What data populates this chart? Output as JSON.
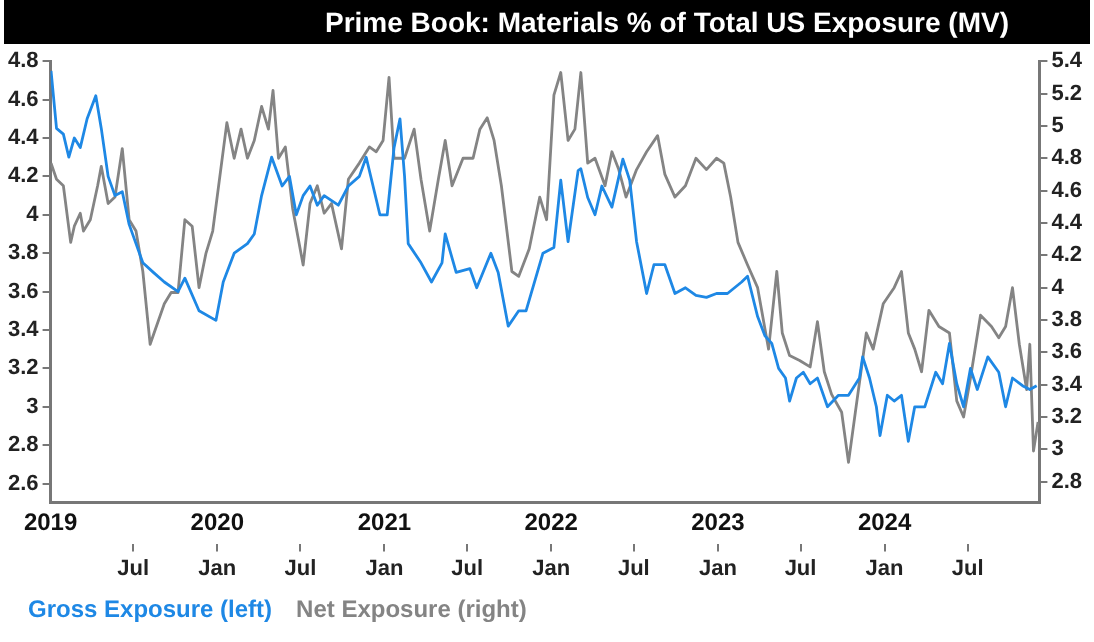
{
  "chart_data": {
    "type": "line",
    "title": "Prime Book: Materials % of Total US Exposure (MV)",
    "xlim": [
      "2019-01-01",
      "2024-12-05"
    ],
    "xticks": [
      {
        "value": "2019-07-01",
        "label": "Jul"
      },
      {
        "value": "2020-01-01",
        "label": "Jan"
      },
      {
        "value": "2020-07-01",
        "label": "Jul"
      },
      {
        "value": "2021-01-01",
        "label": "Jan"
      },
      {
        "value": "2021-07-01",
        "label": "Jul"
      },
      {
        "value": "2022-01-01",
        "label": "Jan"
      },
      {
        "value": "2022-07-01",
        "label": "Jul"
      },
      {
        "value": "2023-01-01",
        "label": "Jan"
      },
      {
        "value": "2023-07-01",
        "label": "Jul"
      },
      {
        "value": "2024-01-01",
        "label": "Jan"
      },
      {
        "value": "2024-07-01",
        "label": "Jul"
      }
    ],
    "x2lim": [
      "2019-01-01",
      "2024-12-05"
    ],
    "x2ticks": [
      {
        "value": "2019-01-01",
        "label": "2019"
      },
      {
        "value": "2020-01-01",
        "label": "2020"
      },
      {
        "value": "2021-01-01",
        "label": "2021"
      },
      {
        "value": "2022-01-01",
        "label": "2022"
      },
      {
        "value": "2023-01-01",
        "label": "2023"
      },
      {
        "value": "2024-01-01",
        "label": "2024"
      }
    ],
    "ylim": [
      2.5,
      4.8
    ],
    "yticks": [
      2.6,
      2.8,
      3,
      3.2,
      3.4,
      3.6,
      3.8,
      4,
      4.2,
      4.4,
      4.6,
      4.8
    ],
    "y2lim": [
      2.67,
      5.4
    ],
    "y2ticks": [
      2.8,
      3,
      3.2,
      3.4,
      3.6,
      3.8,
      4,
      4.2,
      4.4,
      4.6,
      4.8,
      5,
      5.2,
      5.4
    ],
    "legend": "bottom left",
    "marker": "none",
    "line_style": "solid",
    "series": [
      {
        "name": "Gross Exposure (left)",
        "color": "#1e88e5",
        "axis": "y",
        "x": [
          "2019-01-02",
          "2019-01-14",
          "2019-01-29",
          "2019-02-10",
          "2019-02-22",
          "2019-03-07",
          "2019-03-22",
          "2019-04-10",
          "2019-04-22",
          "2019-05-07",
          "2019-05-22",
          "2019-06-07",
          "2019-06-22",
          "2019-07-07",
          "2019-07-22",
          "2019-08-14",
          "2019-09-07",
          "2019-10-07",
          "2019-10-22",
          "2019-11-22",
          "2019-12-29",
          "2020-01-14",
          "2020-02-07",
          "2020-03-07",
          "2020-03-22",
          "2020-04-07",
          "2020-04-29",
          "2020-05-22",
          "2020-06-07",
          "2020-06-22",
          "2020-07-07",
          "2020-07-22",
          "2020-08-07",
          "2020-08-22",
          "2020-09-22",
          "2020-10-14",
          "2020-11-07",
          "2020-11-22",
          "2020-12-22",
          "2021-01-07",
          "2021-01-22",
          "2021-02-04",
          "2021-02-14",
          "2021-02-22",
          "2021-03-22",
          "2021-04-14",
          "2021-05-07",
          "2021-05-14",
          "2021-06-07",
          "2021-07-07",
          "2021-07-22",
          "2021-08-22",
          "2021-09-07",
          "2021-09-29",
          "2021-10-22",
          "2021-11-07",
          "2021-12-14",
          "2022-01-07",
          "2022-01-22",
          "2022-02-07",
          "2022-03-01",
          "2022-03-07",
          "2022-03-22",
          "2022-04-07",
          "2022-04-22",
          "2022-05-14",
          "2022-06-07",
          "2022-06-22",
          "2022-07-07",
          "2022-07-29",
          "2022-08-14",
          "2022-09-07",
          "2022-09-29",
          "2022-10-22",
          "2022-11-14",
          "2022-12-07",
          "2022-12-29",
          "2023-01-22",
          "2023-02-22",
          "2023-03-07",
          "2023-03-29",
          "2023-04-14",
          "2023-04-29",
          "2023-05-14",
          "2023-05-29",
          "2023-06-07",
          "2023-06-22",
          "2023-07-07",
          "2023-07-22",
          "2023-08-07",
          "2023-08-29",
          "2023-09-22",
          "2023-10-14",
          "2023-11-07",
          "2023-11-14",
          "2023-11-29",
          "2023-12-14",
          "2023-12-22",
          "2024-01-07",
          "2024-01-22",
          "2024-02-07",
          "2024-02-22",
          "2024-03-07",
          "2024-03-29",
          "2024-04-22",
          "2024-05-07",
          "2024-05-22",
          "2024-06-07",
          "2024-06-22",
          "2024-07-07",
          "2024-07-22",
          "2024-08-14",
          "2024-09-07",
          "2024-09-22",
          "2024-10-07",
          "2024-10-29",
          "2024-11-14",
          "2024-11-29"
        ],
        "values": [
          4.75,
          4.45,
          4.42,
          4.3,
          4.4,
          4.35,
          4.5,
          4.62,
          4.45,
          4.2,
          4.1,
          4.12,
          3.95,
          3.85,
          3.75,
          3.7,
          3.65,
          3.6,
          3.67,
          3.5,
          3.45,
          3.65,
          3.8,
          3.85,
          3.9,
          4.1,
          4.3,
          4.15,
          4.2,
          4.0,
          4.1,
          4.15,
          4.05,
          4.1,
          4.05,
          4.15,
          4.2,
          4.3,
          4.0,
          4.0,
          4.35,
          4.5,
          4.2,
          3.85,
          3.75,
          3.65,
          3.75,
          3.9,
          3.7,
          3.72,
          3.62,
          3.8,
          3.7,
          3.42,
          3.5,
          3.5,
          3.8,
          3.83,
          4.18,
          3.86,
          4.23,
          4.24,
          4.09,
          4.0,
          4.15,
          4.04,
          4.29,
          4.18,
          3.86,
          3.59,
          3.74,
          3.74,
          3.59,
          3.62,
          3.58,
          3.57,
          3.59,
          3.59,
          3.65,
          3.68,
          3.47,
          3.37,
          3.33,
          3.2,
          3.15,
          3.03,
          3.15,
          3.18,
          3.12,
          3.15,
          3.0,
          3.06,
          3.06,
          3.15,
          3.26,
          3.15,
          3.0,
          2.85,
          3.06,
          3.03,
          3.06,
          2.82,
          3.0,
          3.0,
          3.18,
          3.12,
          3.33,
          3.12,
          3.0,
          3.2,
          3.09,
          3.26,
          3.18,
          3.0,
          3.15,
          3.11,
          3.09,
          3.11
        ]
      },
      {
        "name": "Net Exposure (right)",
        "color": "#848484",
        "axis": "y2",
        "x": [
          "2019-01-02",
          "2019-01-14",
          "2019-01-29",
          "2019-02-14",
          "2019-02-22",
          "2019-03-07",
          "2019-03-14",
          "2019-03-29",
          "2019-04-14",
          "2019-04-22",
          "2019-05-07",
          "2019-05-22",
          "2019-06-07",
          "2019-06-22",
          "2019-07-07",
          "2019-07-22",
          "2019-08-07",
          "2019-09-07",
          "2019-09-22",
          "2019-10-07",
          "2019-10-22",
          "2019-11-07",
          "2019-11-22",
          "2019-12-07",
          "2019-12-22",
          "2020-01-22",
          "2020-02-07",
          "2020-02-22",
          "2020-03-07",
          "2020-03-22",
          "2020-04-07",
          "2020-04-22",
          "2020-05-02",
          "2020-05-14",
          "2020-05-29",
          "2020-06-14",
          "2020-07-07",
          "2020-07-22",
          "2020-08-07",
          "2020-08-22",
          "2020-09-07",
          "2020-09-29",
          "2020-10-14",
          "2020-11-07",
          "2020-11-29",
          "2020-12-14",
          "2020-12-29",
          "2021-01-11",
          "2021-01-22",
          "2021-02-14",
          "2021-03-07",
          "2021-03-22",
          "2021-04-10",
          "2021-04-29",
          "2021-05-14",
          "2021-05-29",
          "2021-06-22",
          "2021-07-14",
          "2021-07-29",
          "2021-08-14",
          "2021-08-29",
          "2021-09-14",
          "2021-10-07",
          "2021-10-22",
          "2021-11-14",
          "2021-12-07",
          "2021-12-22",
          "2022-01-07",
          "2022-01-22",
          "2022-02-07",
          "2022-02-22",
          "2022-03-07",
          "2022-03-22",
          "2022-04-07",
          "2022-04-29",
          "2022-05-14",
          "2022-05-29",
          "2022-06-14",
          "2022-07-07",
          "2022-07-29",
          "2022-08-22",
          "2022-09-07",
          "2022-09-29",
          "2022-10-22",
          "2022-11-14",
          "2022-12-07",
          "2022-12-29",
          "2023-01-14",
          "2023-01-29",
          "2023-02-14",
          "2023-03-07",
          "2023-03-29",
          "2023-04-22",
          "2023-05-10",
          "2023-05-22",
          "2023-06-07",
          "2023-06-29",
          "2023-07-22",
          "2023-08-07",
          "2023-08-22",
          "2023-09-07",
          "2023-09-29",
          "2023-10-14",
          "2023-10-29",
          "2023-11-22",
          "2023-12-07",
          "2023-12-29",
          "2024-01-22",
          "2024-02-07",
          "2024-02-22",
          "2024-03-07",
          "2024-03-22",
          "2024-04-07",
          "2024-04-29",
          "2024-05-22",
          "2024-06-07",
          "2024-06-22",
          "2024-07-07",
          "2024-07-29",
          "2024-08-22",
          "2024-09-07",
          "2024-09-22",
          "2024-10-07",
          "2024-10-22",
          "2024-11-07",
          "2024-11-14",
          "2024-11-22",
          "2024-12-02"
        ],
        "values": [
          4.77,
          4.67,
          4.63,
          4.28,
          4.38,
          4.46,
          4.35,
          4.42,
          4.63,
          4.75,
          4.52,
          4.56,
          4.86,
          4.42,
          4.35,
          4.1,
          3.65,
          3.9,
          3.97,
          3.97,
          4.42,
          4.38,
          4.0,
          4.21,
          4.35,
          5.02,
          4.8,
          4.98,
          4.8,
          4.91,
          5.12,
          4.98,
          5.22,
          4.8,
          4.87,
          4.49,
          4.14,
          4.52,
          4.63,
          4.46,
          4.52,
          4.24,
          4.67,
          4.77,
          4.87,
          4.84,
          4.91,
          5.3,
          4.8,
          4.8,
          4.98,
          4.67,
          4.35,
          4.67,
          4.91,
          4.63,
          4.8,
          4.8,
          4.98,
          5.05,
          4.91,
          4.63,
          4.1,
          4.07,
          4.24,
          4.56,
          4.42,
          5.19,
          5.33,
          4.91,
          4.98,
          5.33,
          4.77,
          4.8,
          4.63,
          4.84,
          4.73,
          4.56,
          4.73,
          4.84,
          4.94,
          4.7,
          4.56,
          4.63,
          4.8,
          4.73,
          4.8,
          4.77,
          4.56,
          4.28,
          4.14,
          4.0,
          3.62,
          4.1,
          3.72,
          3.58,
          3.55,
          3.51,
          3.79,
          3.48,
          3.34,
          3.23,
          2.92,
          3.23,
          3.72,
          3.62,
          3.9,
          4.0,
          4.1,
          3.72,
          3.62,
          3.48,
          3.86,
          3.76,
          3.72,
          3.3,
          3.2,
          3.44,
          3.83,
          3.76,
          3.69,
          3.76,
          4.0,
          3.65,
          3.37,
          3.65,
          2.99,
          3.17
        ]
      }
    ]
  }
}
